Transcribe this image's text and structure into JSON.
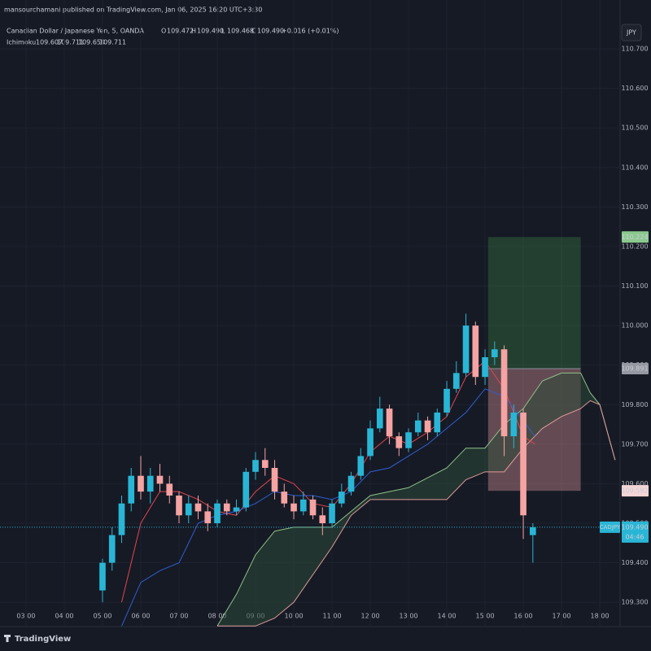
{
  "header": {
    "published": "mansourchamani published on TradingView.com, Jan 06, 2025 16:20 UTC+3:30",
    "symbol": "Canadian Dollar / Japanese Yen, 5, OANDA",
    "ohlc": [
      {
        "label": "O",
        "value": "109.472"
      },
      {
        "label": "H",
        "value": "109.490"
      },
      {
        "label": "L",
        "value": "109.468"
      },
      {
        "label": "C",
        "value": "109.490"
      }
    ],
    "change": "+0.016 (+0.01%)",
    "indicator": "Ichimoku",
    "indicator_values": [
      "109.607",
      "109.711",
      "109.659",
      "109.711"
    ],
    "indicator_colors": [
      "#f05a5a",
      "#3f6fe0",
      "#8fc48a",
      "#f0a0a0"
    ],
    "currency": "JPY",
    "footer": "TradingView"
  },
  "chart_data": {
    "type": "candlestick",
    "up_color": "#29b6d6",
    "down_color": "#f5a3a3",
    "x": [
      5,
      5.25,
      5.5,
      5.75,
      6,
      6.25,
      6.5,
      6.75,
      7,
      7.25,
      7.5,
      7.75,
      8,
      8.25,
      8.5,
      8.75,
      9,
      9.25,
      9.5,
      9.75,
      10,
      10.25,
      10.5,
      10.75,
      11,
      11.25,
      11.5,
      11.75,
      12,
      12.25,
      12.5,
      12.75,
      13,
      13.25,
      13.5,
      13.75,
      14,
      14.25,
      14.5,
      14.75,
      15,
      15.25,
      15.5,
      15.75,
      16,
      16.25
    ],
    "open": [
      109.33,
      109.4,
      109.47,
      109.55,
      109.62,
      109.58,
      109.62,
      109.6,
      109.57,
      109.52,
      109.55,
      109.53,
      109.5,
      109.55,
      109.53,
      109.54,
      109.63,
      109.66,
      109.64,
      109.58,
      109.55,
      109.53,
      109.56,
      109.52,
      109.5,
      109.55,
      109.58,
      109.62,
      109.67,
      109.74,
      109.79,
      109.72,
      109.69,
      109.73,
      109.76,
      109.73,
      109.78,
      109.84,
      109.88,
      110.0,
      109.87,
      109.92,
      109.94,
      109.72,
      109.78,
      109.47
    ],
    "high": [
      109.41,
      109.49,
      109.57,
      109.64,
      109.67,
      109.64,
      109.65,
      109.62,
      109.58,
      109.57,
      109.57,
      109.55,
      109.56,
      109.56,
      109.56,
      109.64,
      109.68,
      109.69,
      109.66,
      109.6,
      109.57,
      109.58,
      109.57,
      109.54,
      109.56,
      109.6,
      109.63,
      109.69,
      109.76,
      109.82,
      109.8,
      109.73,
      109.74,
      109.78,
      109.77,
      109.79,
      109.86,
      109.91,
      110.03,
      110.01,
      109.94,
      109.96,
      109.95,
      109.8,
      109.79,
      109.5
    ],
    "low": [
      109.3,
      109.38,
      109.45,
      109.53,
      109.56,
      109.55,
      109.58,
      109.55,
      109.5,
      109.5,
      109.51,
      109.48,
      109.49,
      109.52,
      109.52,
      109.53,
      109.61,
      109.62,
      109.56,
      109.54,
      109.51,
      109.52,
      109.51,
      109.47,
      109.49,
      109.54,
      109.57,
      109.61,
      109.66,
      109.73,
      109.7,
      109.67,
      109.68,
      109.72,
      109.71,
      109.72,
      109.77,
      109.83,
      109.87,
      109.85,
      109.85,
      109.9,
      109.67,
      109.69,
      109.46,
      109.4
    ],
    "close": [
      109.4,
      109.47,
      109.55,
      109.62,
      109.58,
      109.62,
      109.6,
      109.57,
      109.52,
      109.55,
      109.53,
      109.5,
      109.55,
      109.53,
      109.54,
      109.63,
      109.66,
      109.64,
      109.58,
      109.55,
      109.53,
      109.56,
      109.52,
      109.5,
      109.55,
      109.58,
      109.62,
      109.67,
      109.74,
      109.79,
      109.72,
      109.69,
      109.73,
      109.76,
      109.73,
      109.78,
      109.84,
      109.88,
      110.0,
      109.87,
      109.92,
      109.94,
      109.72,
      109.78,
      109.52,
      109.49
    ],
    "lines": [
      {
        "color": "#e0454f",
        "x": [
          5.5,
          6,
          6.5,
          7,
          7.5,
          8,
          8.5,
          9,
          9.5,
          10,
          10.5,
          11,
          11.5,
          12,
          12.5,
          13,
          13.5,
          14,
          14.5,
          15,
          15.5,
          16,
          16.3
        ],
        "values": [
          109.3,
          109.5,
          109.58,
          109.58,
          109.56,
          109.53,
          109.52,
          109.58,
          109.62,
          109.6,
          109.55,
          109.54,
          109.6,
          109.68,
          109.72,
          109.7,
          109.73,
          109.77,
          109.87,
          109.91,
          109.84,
          109.72,
          109.7
        ]
      },
      {
        "color": "#2f5fd0",
        "x": [
          5.5,
          6,
          6.5,
          7,
          7.5,
          8,
          8.5,
          9,
          9.5,
          10,
          10.5,
          11,
          11.5,
          12,
          12.5,
          13,
          13.5,
          14,
          14.5,
          15,
          15.5,
          16,
          16.3
        ],
        "values": [
          109.24,
          109.35,
          109.38,
          109.4,
          109.5,
          109.52,
          109.53,
          109.55,
          109.58,
          109.57,
          109.57,
          109.56,
          109.58,
          109.63,
          109.64,
          109.67,
          109.7,
          109.74,
          109.78,
          109.84,
          109.82,
          109.76,
          109.72
        ]
      }
    ],
    "cloud": {
      "x": [
        8,
        8.5,
        9,
        9.5,
        10,
        11,
        11.5,
        12,
        13,
        14,
        14.5,
        15,
        15.5,
        16,
        16.5,
        17,
        17.5,
        17.75,
        18,
        18.4
      ],
      "span_a": [
        109.24,
        109.32,
        109.42,
        109.48,
        109.49,
        109.49,
        109.53,
        109.57,
        109.59,
        109.64,
        109.69,
        109.69,
        109.75,
        109.79,
        109.86,
        109.88,
        109.88,
        109.83,
        109.8,
        109.66
      ],
      "span_b": [
        109.24,
        109.24,
        109.24,
        109.26,
        109.3,
        109.44,
        109.52,
        109.56,
        109.56,
        109.56,
        109.61,
        109.63,
        109.63,
        109.69,
        109.74,
        109.77,
        109.79,
        109.81,
        109.8,
        109.66
      ],
      "color_a": "#8fbf8a",
      "color_b": "#e09a9a",
      "fill": "#2e4a38"
    },
    "position": {
      "x_start": 15.08,
      "x_end": 17.5,
      "entry": 109.891,
      "target": 110.224,
      "stop": 109.582
    },
    "last": {
      "symbol": "CADJPY",
      "price": {
        "value": 109.49,
        "label": "109.490"
      },
      "countdown": "04:46"
    },
    "xlim": [
      2.32,
      18.53
    ],
    "ylim": [
      109.29,
      110.766
    ],
    "xticks": [
      {
        "value": 3,
        "label": "03:00"
      },
      {
        "value": 4,
        "label": "04:00"
      },
      {
        "value": 5,
        "label": "05:00"
      },
      {
        "value": 6,
        "label": "06:00"
      },
      {
        "value": 7,
        "label": "07:00"
      },
      {
        "value": 8,
        "label": "08:00"
      },
      {
        "value": 9,
        "label": "09:00"
      },
      {
        "value": 10,
        "label": "10:00"
      },
      {
        "value": 11,
        "label": "11:00"
      },
      {
        "value": 12,
        "label": "12:00"
      },
      {
        "value": 13,
        "label": "13:00"
      },
      {
        "value": 14,
        "label": "14:00"
      },
      {
        "value": 15,
        "label": "15:00"
      },
      {
        "value": 16,
        "label": "16:00"
      },
      {
        "value": 17,
        "label": "17:00"
      },
      {
        "value": 18,
        "label": "18:00"
      }
    ],
    "yticks": [
      {
        "value": 109.3,
        "label": "109.300"
      },
      {
        "value": 109.4,
        "label": "109.400"
      },
      {
        "value": 109.5,
        "label": "109.500"
      },
      {
        "value": 109.6,
        "label": "109.600"
      },
      {
        "value": 109.7,
        "label": "109.700"
      },
      {
        "value": 109.8,
        "label": "109.800"
      },
      {
        "value": 109.9,
        "label": "109.900"
      },
      {
        "value": 110,
        "label": "110.000"
      },
      {
        "value": 110.1,
        "label": "110.100"
      },
      {
        "value": 110.2,
        "label": "110.200"
      },
      {
        "value": 110.3,
        "label": "110.300"
      },
      {
        "value": 110.4,
        "label": "110.400"
      },
      {
        "value": 110.5,
        "label": "110.500"
      },
      {
        "value": 110.6,
        "label": "110.600"
      },
      {
        "value": 110.7,
        "label": "110.700"
      }
    ],
    "grid": true
  }
}
